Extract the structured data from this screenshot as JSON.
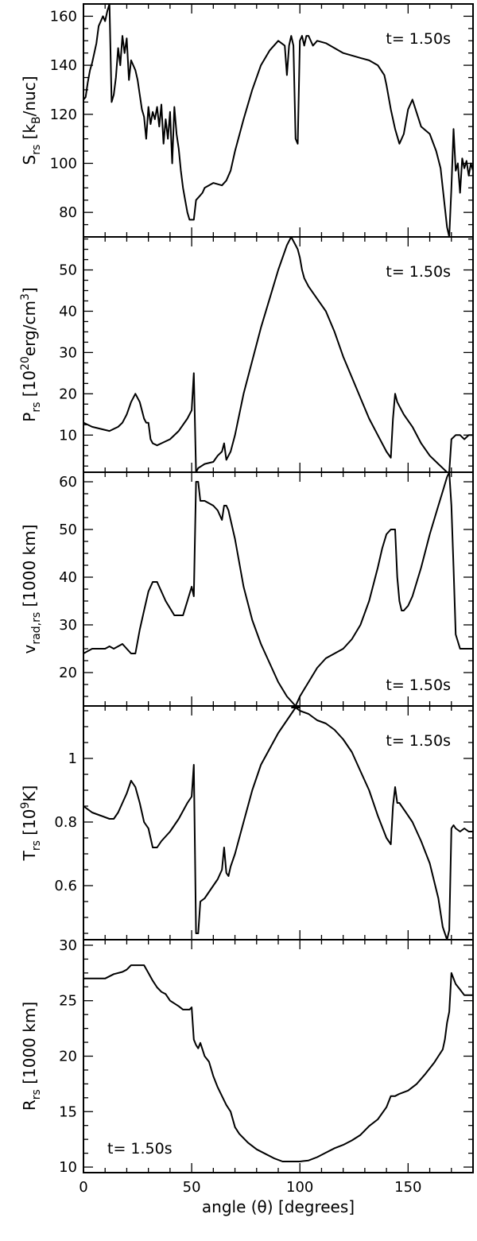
{
  "chart_data": [
    {
      "type": "line",
      "ylabel": "S",
      "ylabel_sub": "rs",
      "ylabel_unit_parts": [
        "[k",
        "B",
        "/nuc]"
      ],
      "annotation": "t=  1.50s",
      "annotation_position": "top-right",
      "xlim": [
        0,
        180
      ],
      "ylim": [
        70,
        165
      ],
      "yticks": [
        80,
        100,
        120,
        140,
        160
      ],
      "series": [
        {
          "x": [
            0,
            1,
            2,
            3,
            4,
            5,
            6,
            7,
            8,
            9,
            10,
            11,
            12,
            13,
            14,
            15,
            16,
            17,
            18,
            19,
            20,
            21,
            22,
            23,
            24,
            25,
            26,
            27,
            28,
            29,
            30,
            31,
            32,
            33,
            34,
            35,
            36,
            37,
            38,
            39,
            40,
            41,
            42,
            43,
            44,
            45,
            46,
            47,
            48,
            49,
            50,
            51,
            52,
            53,
            54,
            55,
            56,
            60,
            64,
            66,
            68,
            70,
            74,
            78,
            82,
            86,
            90,
            93,
            94,
            95,
            96,
            97,
            98,
            99,
            100,
            101,
            102,
            103,
            104,
            106,
            108,
            112,
            116,
            120,
            124,
            128,
            132,
            136,
            139,
            140,
            142,
            144,
            146,
            147,
            148,
            150,
            152,
            156,
            160,
            163,
            165,
            166,
            167,
            168,
            169,
            170,
            171,
            172,
            173,
            174,
            175,
            176,
            177,
            178,
            179,
            180
          ],
          "values": [
            126,
            127,
            133,
            138,
            141,
            145,
            149,
            156,
            158,
            160,
            158,
            162,
            165,
            125,
            128,
            135,
            147,
            140,
            152,
            145,
            151,
            134,
            142,
            140,
            138,
            134,
            128,
            122,
            119,
            110,
            123,
            116,
            121,
            118,
            123,
            115,
            124,
            108,
            118,
            110,
            121,
            100,
            123,
            112,
            106,
            97,
            90,
            85,
            80,
            77,
            77,
            77,
            85,
            86,
            87,
            88,
            90,
            92,
            91,
            93,
            97,
            105,
            118,
            130,
            140,
            146,
            150,
            148,
            136,
            148,
            152,
            148,
            110,
            108,
            150,
            152,
            148,
            152,
            152,
            148,
            150,
            149,
            147,
            145,
            144,
            143,
            142,
            140,
            136,
            132,
            122,
            114,
            108,
            110,
            112,
            122,
            126,
            115,
            112,
            105,
            98,
            90,
            82,
            74,
            70,
            90,
            114,
            97,
            100,
            88,
            102,
            98,
            101,
            95,
            100,
            97
          ]
        }
      ]
    },
    {
      "type": "line",
      "ylabel": "P",
      "ylabel_sub": "rs",
      "ylabel_unit_parts": [
        "[10",
        "20",
        "erg/cm",
        "3",
        "]"
      ],
      "annotation": "t=  1.50s",
      "annotation_position": "top-right",
      "xlim": [
        0,
        180
      ],
      "ylim": [
        1,
        58
      ],
      "yticks": [
        10,
        20,
        30,
        40,
        50
      ],
      "series": [
        {
          "x": [
            0,
            4,
            8,
            12,
            14,
            16,
            18,
            20,
            22,
            24,
            26,
            28,
            29,
            30,
            31,
            32,
            34,
            36,
            40,
            44,
            48,
            50,
            51,
            52,
            53,
            56,
            60,
            62,
            64,
            65,
            66,
            67,
            68,
            70,
            74,
            78,
            82,
            86,
            90,
            94,
            96,
            98,
            99,
            100,
            101,
            102,
            104,
            108,
            112,
            116,
            120,
            124,
            128,
            132,
            136,
            140,
            142,
            143,
            144,
            145,
            146,
            148,
            152,
            156,
            160,
            164,
            166,
            168,
            169,
            170,
            172,
            174,
            176,
            178,
            180
          ],
          "values": [
            13,
            12,
            11.5,
            11,
            11.5,
            12,
            13,
            15,
            18,
            20,
            18,
            14,
            13,
            13,
            9,
            8,
            7.5,
            8,
            9,
            11,
            14,
            16,
            25,
            1,
            2,
            3,
            3.5,
            5,
            6,
            8,
            4,
            5,
            6,
            10,
            20,
            28,
            36,
            43,
            50,
            56,
            58,
            56,
            55,
            53,
            50,
            48,
            46,
            43,
            40,
            35,
            29,
            24,
            19,
            14,
            10,
            6,
            4.5,
            14,
            20,
            18,
            17,
            15,
            12,
            8,
            5,
            3,
            2,
            1,
            1,
            9,
            10,
            10,
            9,
            10,
            10
          ]
        }
      ]
    },
    {
      "type": "line",
      "ylabel": "v",
      "ylabel_sub": "rad,rs",
      "ylabel_unit_parts": [
        "[1000 km]"
      ],
      "annotation": "t=  1.50s",
      "annotation_position": "bottom-right",
      "xlim": [
        0,
        180
      ],
      "ylim": [
        13,
        62
      ],
      "yticks": [
        20,
        30,
        40,
        50,
        60
      ],
      "series": [
        {
          "x": [
            0,
            4,
            8,
            10,
            12,
            14,
            16,
            18,
            20,
            22,
            24,
            26,
            28,
            30,
            32,
            34,
            36,
            38,
            42,
            46,
            48,
            50,
            51,
            52,
            53,
            54,
            56,
            60,
            62,
            64,
            65,
            66,
            67,
            68,
            70,
            74,
            78,
            82,
            86,
            90,
            94,
            98,
            100
          ],
          "values": [
            24,
            25,
            25,
            25,
            25.5,
            25,
            25.5,
            26,
            25,
            24,
            24,
            29,
            33,
            37,
            39,
            39,
            37,
            35,
            32,
            32,
            35,
            38,
            36,
            60,
            60,
            56,
            56,
            55,
            54,
            52,
            55,
            55,
            54,
            52,
            48,
            38,
            31,
            26,
            22,
            18,
            15,
            13,
            13
          ]
        },
        {
          "x": [
            96,
            98,
            100,
            104,
            108,
            112,
            116,
            120,
            124,
            128,
            132,
            136,
            138,
            140,
            142,
            144,
            145,
            146,
            147,
            148,
            150,
            152,
            156,
            160,
            164,
            166,
            168,
            169,
            170,
            171,
            172,
            174,
            176,
            178,
            180
          ],
          "values": [
            13,
            13,
            15,
            18,
            21,
            23,
            24,
            25,
            27,
            30,
            35,
            42,
            46,
            49,
            50,
            50,
            40,
            35,
            33,
            33,
            34,
            36,
            42,
            49,
            55,
            58,
            61,
            62,
            55,
            42,
            28,
            25,
            25,
            25,
            25
          ]
        }
      ]
    },
    {
      "type": "line",
      "ylabel": "T",
      "ylabel_sub": "rs",
      "ylabel_unit_parts": [
        "[10",
        "9",
        "K]"
      ],
      "annotation": "t=  1.50s",
      "annotation_position": "top-right",
      "xlim": [
        0,
        180
      ],
      "ylim": [
        0.43,
        1.165
      ],
      "yticks": [
        0.6,
        0.8,
        1.0
      ],
      "series": [
        {
          "x": [
            0,
            4,
            8,
            12,
            14,
            16,
            18,
            20,
            22,
            24,
            26,
            28,
            29,
            30,
            31,
            32,
            34,
            36,
            40,
            44,
            48,
            50,
            51,
            52,
            53,
            54,
            56,
            60,
            62,
            64,
            65,
            66,
            67,
            68,
            70,
            74,
            78,
            82,
            86,
            90,
            94,
            98,
            100
          ],
          "values": [
            0.85,
            0.83,
            0.82,
            0.81,
            0.81,
            0.83,
            0.86,
            0.89,
            0.93,
            0.91,
            0.86,
            0.8,
            0.79,
            0.78,
            0.75,
            0.72,
            0.72,
            0.74,
            0.77,
            0.81,
            0.86,
            0.88,
            0.98,
            0.45,
            0.45,
            0.55,
            0.56,
            0.6,
            0.62,
            0.65,
            0.72,
            0.64,
            0.63,
            0.66,
            0.7,
            0.8,
            0.9,
            0.98,
            1.03,
            1.08,
            1.12,
            1.16,
            1.16
          ]
        },
        {
          "x": [
            96,
            98,
            100,
            104,
            108,
            112,
            116,
            120,
            124,
            128,
            132,
            136,
            140,
            142,
            143,
            144,
            145,
            146,
            148,
            152,
            156,
            160,
            164,
            166,
            168,
            169,
            170,
            171,
            172,
            174,
            176,
            178,
            180
          ],
          "values": [
            1.16,
            1.16,
            1.15,
            1.14,
            1.12,
            1.11,
            1.09,
            1.06,
            1.02,
            0.96,
            0.9,
            0.82,
            0.75,
            0.73,
            0.85,
            0.91,
            0.86,
            0.86,
            0.84,
            0.8,
            0.74,
            0.67,
            0.56,
            0.47,
            0.43,
            0.46,
            0.78,
            0.79,
            0.78,
            0.77,
            0.78,
            0.77,
            0.77
          ]
        }
      ]
    },
    {
      "type": "line",
      "ylabel": "R",
      "ylabel_sub": "rs",
      "ylabel_unit_parts": [
        "[1000 km]"
      ],
      "annotation": "t=  1.50s",
      "annotation_position": "bottom-left",
      "xlim": [
        0,
        180
      ],
      "ylim": [
        9.5,
        30.5
      ],
      "yticks": [
        10,
        15,
        20,
        25,
        30
      ],
      "xticks": [
        0,
        50,
        100,
        150
      ],
      "xlabel": "angle (θ) [degrees]",
      "series": [
        {
          "x": [
            0,
            10,
            14,
            18,
            20,
            22,
            24,
            26,
            28,
            30,
            32,
            34,
            36,
            38,
            40,
            44,
            46,
            48,
            49,
            50,
            51,
            52,
            53,
            54,
            55,
            56,
            58,
            60,
            62,
            64,
            66,
            68,
            70,
            72,
            76,
            80,
            84,
            88,
            92,
            96,
            98,
            100,
            104,
            108,
            112,
            116,
            120,
            124,
            128,
            132,
            136,
            140,
            142,
            144,
            146,
            150,
            154,
            158,
            162,
            164,
            166,
            167,
            168,
            169,
            170,
            172,
            174,
            176,
            178,
            180
          ],
          "values": [
            27,
            27,
            27.4,
            27.6,
            27.8,
            28.2,
            28.2,
            28.2,
            28.2,
            27.5,
            26.8,
            26.2,
            25.8,
            25.6,
            25,
            24.5,
            24.2,
            24.2,
            24.2,
            24.4,
            21.5,
            21,
            20.7,
            21.2,
            20.6,
            20,
            19.5,
            18.2,
            17.2,
            16.4,
            15.6,
            15,
            13.6,
            13,
            12.2,
            11.6,
            11.2,
            10.8,
            10.5,
            10.5,
            10.5,
            10.5,
            10.6,
            10.9,
            11.3,
            11.7,
            12,
            12.4,
            12.9,
            13.7,
            14.3,
            15.4,
            16.4,
            16.4,
            16.6,
            16.9,
            17.5,
            18.4,
            19.4,
            20,
            20.6,
            21.5,
            23,
            24,
            27.5,
            26.5,
            26,
            25.5,
            25.5,
            25.5
          ]
        }
      ]
    }
  ]
}
